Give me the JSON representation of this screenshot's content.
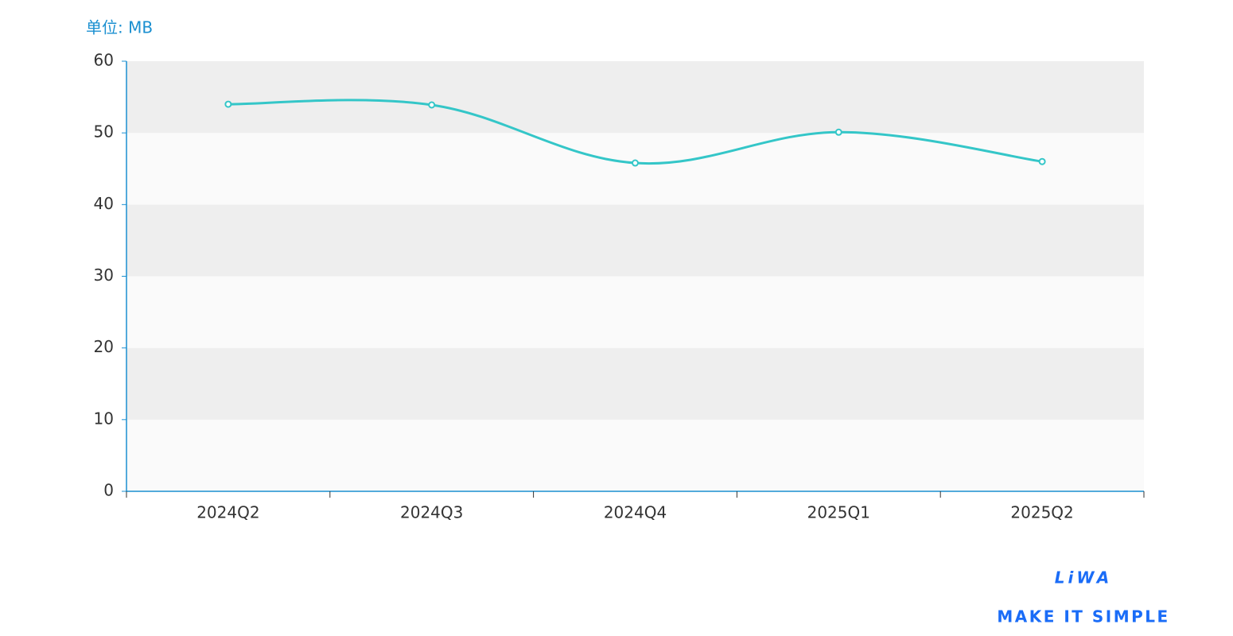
{
  "chart_data": {
    "type": "line",
    "unit_label": "单位: MB",
    "categories": [
      "2024Q2",
      "2024Q3",
      "2024Q4",
      "2025Q1",
      "2025Q2"
    ],
    "series": [
      {
        "color": "#34c6c8",
        "values": [
          54.0,
          53.9,
          45.8,
          50.1,
          46.0
        ]
      }
    ],
    "smooth": true,
    "ylim": [
      0,
      60
    ],
    "yticks": [
      0,
      10,
      20,
      30,
      40,
      50,
      60
    ],
    "split_area": true,
    "split_area_colors": [
      "#fafafa",
      "#eeeeee"
    ],
    "axis_color": "#1a8fd0"
  },
  "logo": {
    "name": "LiWA",
    "tagline": "MAKE IT SIMPLE"
  }
}
